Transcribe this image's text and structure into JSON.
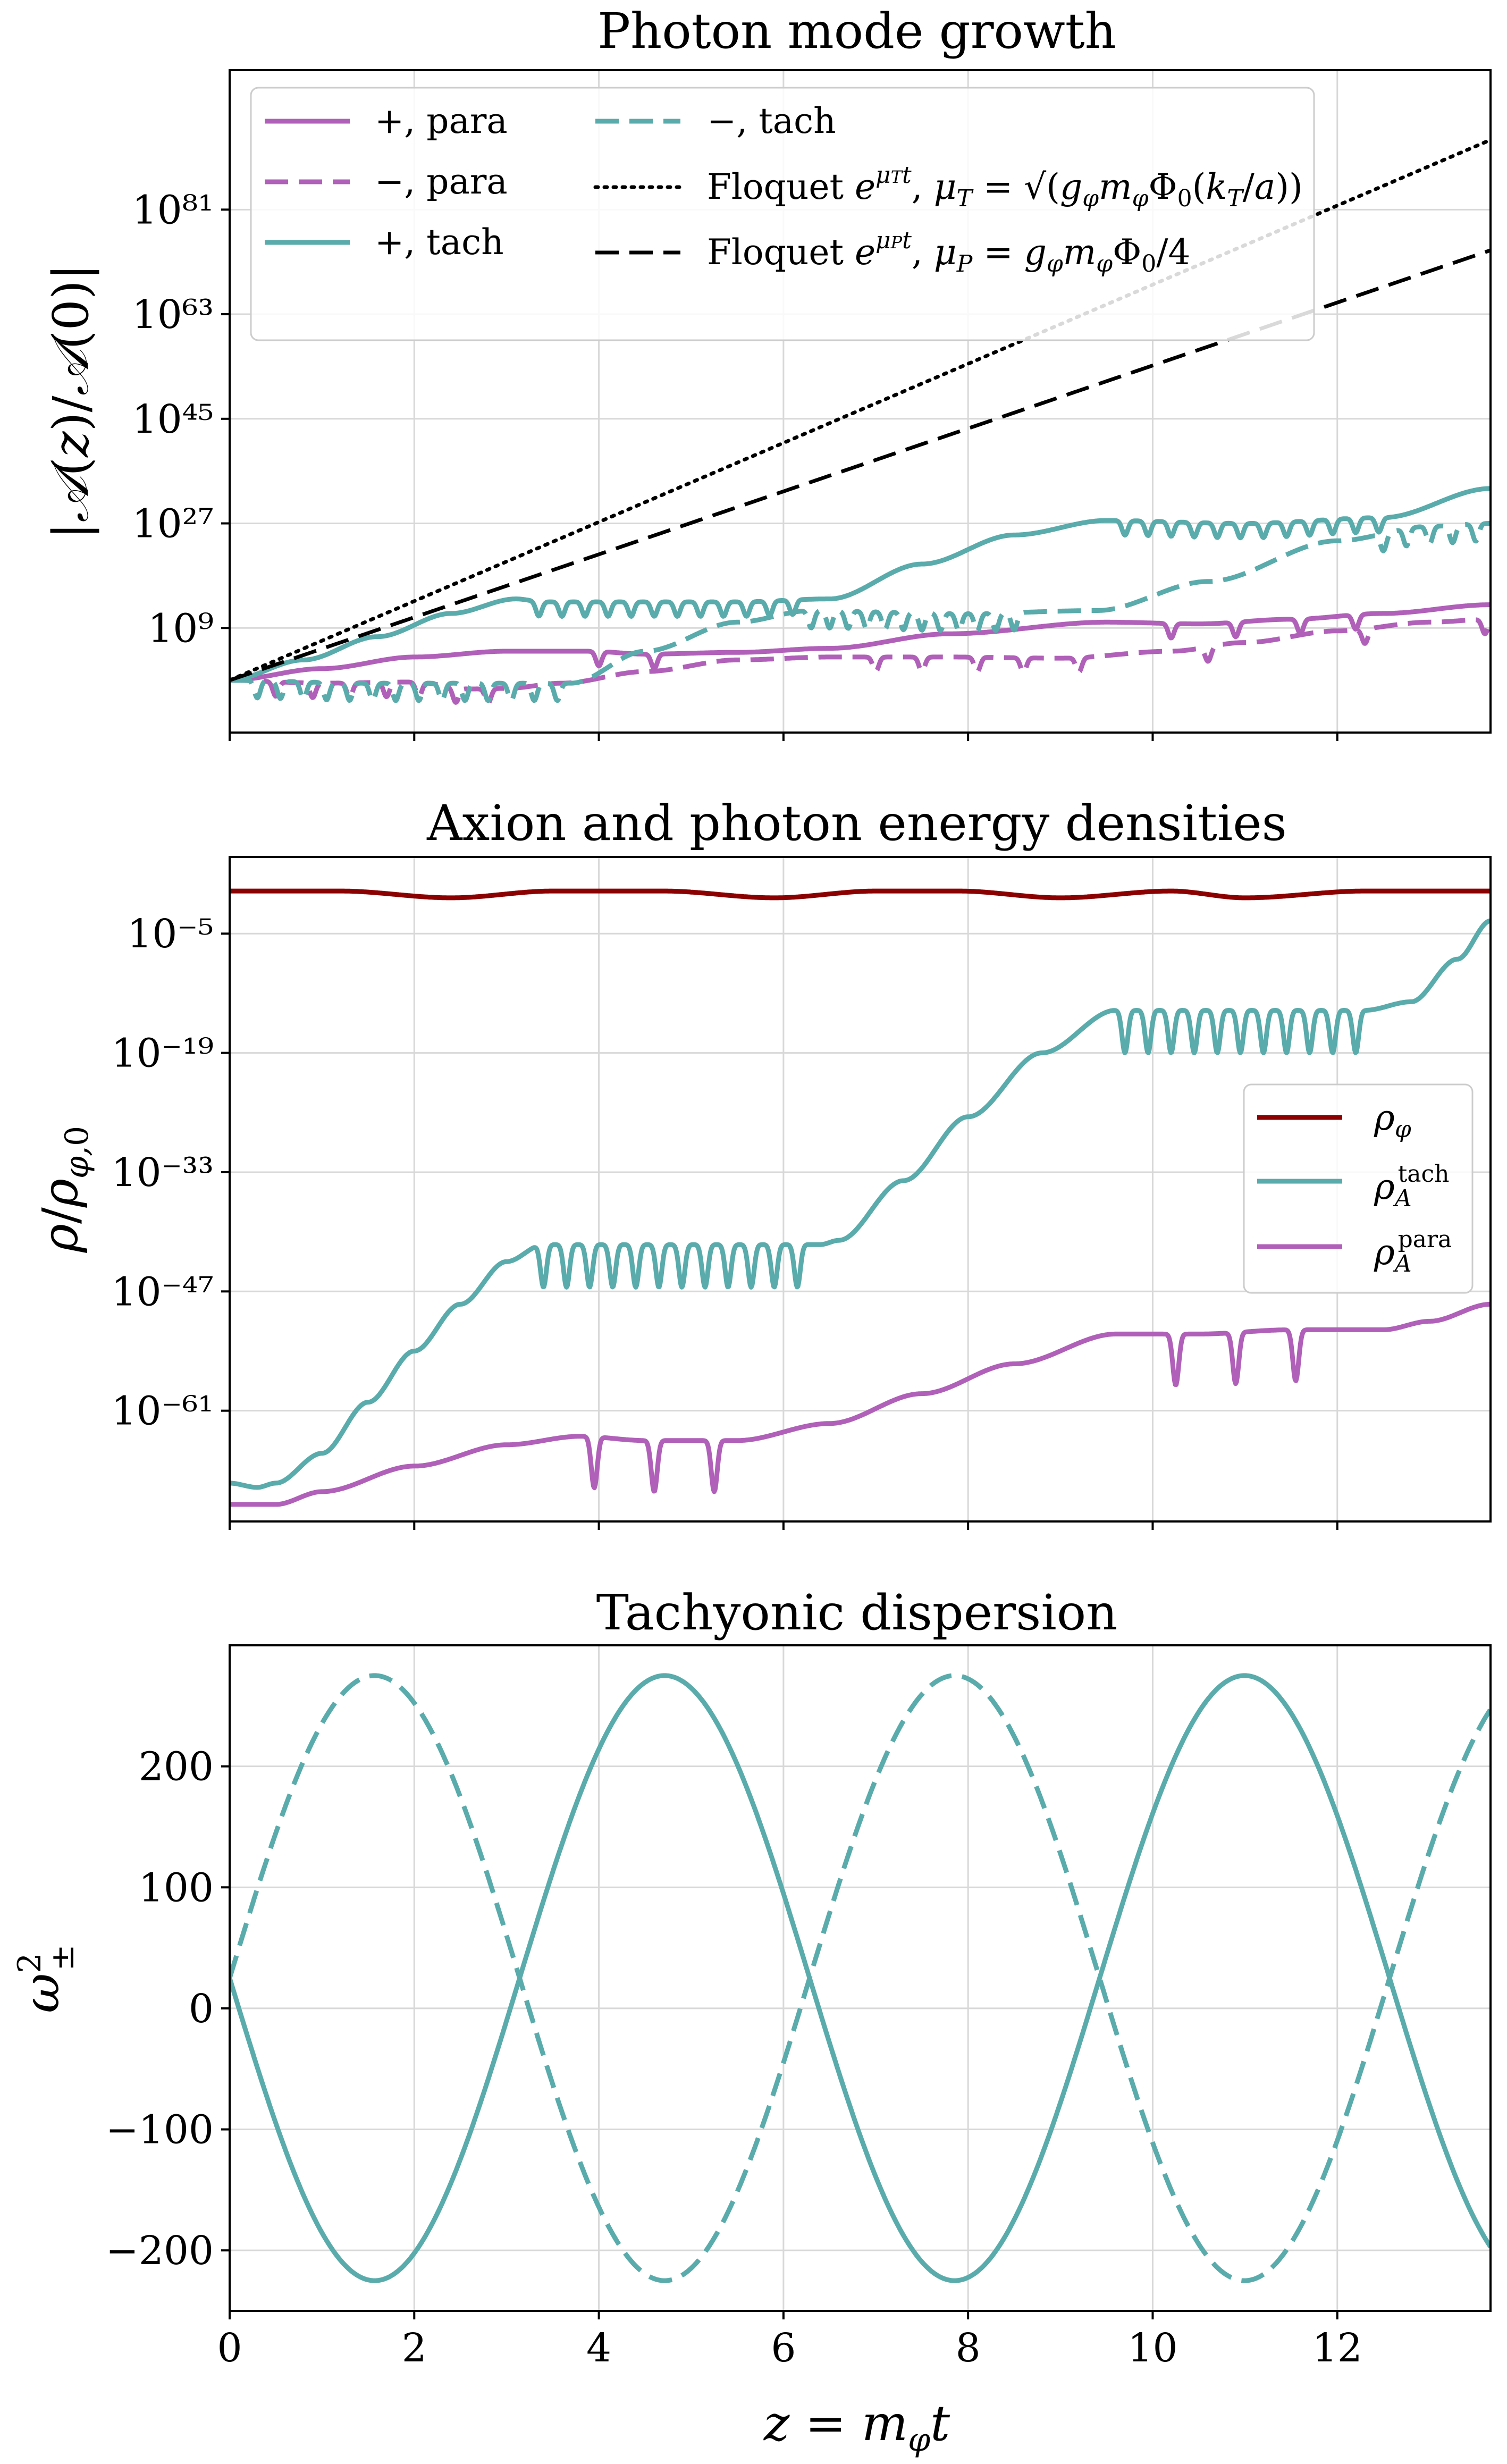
{
  "colors": {
    "para": "#b060b8",
    "tach": "#5aabab",
    "rho_phi": "#8b0000",
    "floquet": "#000000",
    "grid": "#d8d8d8"
  },
  "chart_data": [
    {
      "type": "line",
      "title": "Photon mode growth",
      "xlabel": "",
      "ylabel": "|𝒜(z)/𝒜(0)|",
      "yscale": "log",
      "xlim": [
        0,
        13.66
      ],
      "ylim_log10": [
        -9,
        105
      ],
      "x_ticks": [
        0,
        2,
        4,
        6,
        8,
        10,
        12
      ],
      "y_ticks_log10": [
        9,
        27,
        45,
        63,
        81
      ],
      "y_tick_labels": [
        "10⁹",
        "10²⁷",
        "10⁴⁵",
        "10⁶³",
        "10⁸¹"
      ],
      "grid": true,
      "legend_position": "top-left",
      "series": [
        {
          "name": "+, para",
          "color": "para",
          "style": "solid",
          "x": [
            0,
            1,
            2,
            3,
            3.9,
            4.5,
            5.5,
            6.5,
            7.8,
            9.5,
            10.5,
            11.5,
            12.5,
            13.66
          ],
          "log10_y": [
            0,
            2,
            4,
            5,
            5,
            4.5,
            4.8,
            5.5,
            8,
            10,
            9.7,
            10.5,
            11.5,
            13
          ]
        },
        {
          "name": "−, para",
          "color": "para",
          "style": "dashed",
          "x": [
            0,
            1,
            2,
            2.6,
            3,
            3.6,
            4.5,
            5.5,
            6.5,
            7.8,
            9,
            10.2,
            11,
            12,
            13,
            13.66
          ],
          "log10_y": [
            0,
            -0.5,
            -0.3,
            -1.5,
            -1.4,
            -0.5,
            1.5,
            3.5,
            4,
            4,
            3.8,
            5,
            6.5,
            8.5,
            10,
            10.5
          ]
        },
        {
          "name": "+, tach",
          "color": "tach",
          "style": "solid",
          "x": [
            0,
            0.8,
            1.6,
            2.4,
            3.1,
            3.4,
            5.5,
            6.5,
            7.5,
            8.5,
            9.5,
            11,
            12.5,
            13.66
          ],
          "log10_y": [
            0,
            3.5,
            7.5,
            11.5,
            14,
            13.5,
            13.5,
            14,
            20,
            25,
            27.5,
            27,
            28,
            33
          ]
        },
        {
          "name": "−, tach",
          "color": "tach",
          "style": "dashed",
          "x": [
            0,
            1.5,
            3,
            3.7,
            4.5,
            5.5,
            6.3,
            8,
            9.4,
            10.6,
            12,
            13,
            13.66
          ],
          "log10_y": [
            0,
            -0.5,
            -0.5,
            -0.5,
            5,
            10,
            12,
            11.5,
            12,
            17,
            24,
            26.5,
            27
          ]
        },
        {
          "name": "Floquet e^{μ_T t}, μ_T = √(g_φ m_φ Φ₀ (k_T/a))",
          "color": "floquet",
          "style": "dotted",
          "x": [
            0,
            13.66
          ],
          "log10_y": [
            0,
            93
          ]
        },
        {
          "name": "Floquet e^{μ_P t}, μ_P = g_φ m_φ Φ₀/4",
          "color": "floquet",
          "style": "dashed",
          "x": [
            0,
            13.66
          ],
          "log10_y": [
            0,
            74
          ]
        }
      ],
      "dips": [
        {
          "series": "+, para",
          "x": [
            4.0,
            4.6,
            10.2,
            10.9,
            11.6,
            12.2
          ],
          "depth": 2.5
        },
        {
          "series": "−, para",
          "x": [
            0.5,
            0.9,
            1.3,
            1.7,
            2.05,
            2.45,
            2.8,
            7.0,
            7.5,
            8.1,
            8.6,
            9.2,
            10.6,
            12.3,
            13.6
          ],
          "depth": 2.5
        },
        {
          "series": "+, tach",
          "x": [
            3.35,
            3.6,
            3.85,
            4.1,
            4.35,
            4.6,
            4.85,
            5.1,
            5.35,
            5.6,
            5.85,
            6.1,
            9.7,
            9.95,
            10.2,
            10.45,
            10.7,
            10.95,
            11.2,
            11.45,
            11.7,
            11.95,
            12.2,
            12.45
          ],
          "depth": 2.5
        },
        {
          "series": "−, tach",
          "x": [
            0.3,
            0.55,
            0.8,
            1.05,
            1.3,
            1.55,
            1.8,
            2.05,
            2.3,
            2.55,
            2.8,
            3.05,
            3.3,
            3.55,
            6.3,
            6.5,
            6.7,
            6.9,
            7.1,
            7.3,
            7.5,
            7.7,
            7.9,
            8.1,
            8.3,
            8.5,
            12.5,
            12.75,
            13.0,
            13.25,
            13.5
          ],
          "depth": 3
        }
      ]
    },
    {
      "type": "line",
      "title": "Axion and photon energy densities",
      "xlabel": "",
      "ylabel": "ρ/ρ_{φ,0}",
      "yscale": "log",
      "xlim": [
        0,
        13.66
      ],
      "ylim_log10": [
        -74,
        4
      ],
      "x_ticks": [
        0,
        2,
        4,
        6,
        8,
        10,
        12
      ],
      "y_ticks_log10": [
        -5,
        -19,
        -33,
        -47,
        -61
      ],
      "y_tick_labels": [
        "10⁻⁵",
        "10⁻¹⁹",
        "10⁻³³",
        "10⁻⁴⁷",
        "10⁻⁶¹"
      ],
      "grid": true,
      "legend_position": "center-right",
      "series": [
        {
          "name": "ρ_φ",
          "color": "rho_phi",
          "style": "solid",
          "x": [
            0,
            1.2,
            2.4,
            3.5,
            4.7,
            5.9,
            7.0,
            7.9,
            9.0,
            10.2,
            11.0,
            12.3,
            13.66
          ],
          "log10_y": [
            0,
            0,
            -0.8,
            0,
            0,
            -0.8,
            0,
            0,
            -0.8,
            0,
            -0.8,
            0,
            0
          ]
        },
        {
          "name": "ρ_A^tach",
          "color": "tach",
          "style": "solid",
          "x": [
            0,
            0.3,
            0.5,
            1,
            1.5,
            2,
            2.5,
            3,
            3.4,
            6.4,
            6.6,
            7.3,
            8,
            8.8,
            9.6,
            10.2,
            12.3,
            12.8,
            13.3,
            13.66
          ],
          "log10_y": [
            -69.5,
            -70,
            -69.5,
            -66,
            -60,
            -54,
            -48.5,
            -43.5,
            -41.5,
            -41.5,
            -41,
            -34,
            -26.5,
            -19,
            -14,
            -14,
            -14,
            -13,
            -8,
            -3.5
          ]
        },
        {
          "name": "ρ_A^para",
          "color": "para",
          "style": "solid",
          "x": [
            0,
            0.5,
            1,
            2,
            3,
            3.8,
            4.5,
            5.5,
            6.5,
            7.5,
            8.5,
            9.6,
            10.5,
            11.5,
            12.5,
            13,
            13.66
          ],
          "log10_y": [
            -72,
            -72,
            -70.5,
            -67.5,
            -65,
            -64,
            -64.5,
            -64.5,
            -62.5,
            -59,
            -55.5,
            -52,
            -52,
            -51.5,
            -51.5,
            -50.5,
            -48.5
          ]
        }
      ],
      "dips": [
        {
          "series": "ρ_A^tach",
          "x": [
            3.4,
            3.65,
            3.9,
            4.15,
            4.4,
            4.65,
            4.9,
            5.15,
            5.4,
            5.65,
            5.9,
            6.15
          ],
          "depth": 5
        },
        {
          "series": "ρ_A^tach",
          "x": [
            9.7,
            9.95,
            10.2,
            10.45,
            10.7,
            10.95,
            11.2,
            11.45,
            11.7,
            11.95,
            12.2
          ],
          "depth": 5
        },
        {
          "series": "ρ_A^para",
          "x": [
            3.95,
            4.6,
            5.25,
            10.25,
            10.9,
            11.55
          ],
          "depth": 6
        }
      ]
    },
    {
      "type": "line",
      "title": "Tachyonic dispersion",
      "xlabel": "z = m_φ t",
      "ylabel": "ω²_±",
      "xlim": [
        0,
        13.66
      ],
      "ylim": [
        -250,
        300
      ],
      "x_ticks": [
        0,
        2,
        4,
        6,
        8,
        10,
        12
      ],
      "y_ticks": [
        200,
        100,
        0,
        -100,
        -200
      ],
      "y_tick_labels": [
        "200",
        "100",
        "0",
        "−100",
        "−200"
      ],
      "grid": true,
      "series": [
        {
          "name": "ω²_+",
          "color": "tach",
          "style": "solid",
          "model": "25 - 250*sin(x)"
        },
        {
          "name": "ω²_−",
          "color": "tach",
          "style": "dashed",
          "model": "25 + 250*sin(x)"
        }
      ]
    }
  ],
  "legend1": {
    "entries": [
      {
        "label": "+, para",
        "color": "para",
        "style": "solid"
      },
      {
        "label": "−, para",
        "color": "para",
        "style": "dashed"
      },
      {
        "label": "+, tach",
        "color": "tach",
        "style": "solid"
      },
      {
        "label": "−, tach",
        "color": "tach",
        "style": "dashed"
      },
      {
        "label": "Floquet e^{μ_T t}, μ_T = √(g_φ m_φ Φ₀(k_T/a))",
        "color": "floquet",
        "style": "dotted"
      },
      {
        "label": "Floquet e^{μ_P t}, μ_P = g_φ m_φ Φ₀/4",
        "color": "floquet",
        "style": "dashed"
      }
    ]
  },
  "legend2": {
    "entries": [
      {
        "label": "ρ_φ",
        "color": "rho_phi"
      },
      {
        "label": "ρ_A^tach",
        "color": "tach"
      },
      {
        "label": "ρ_A^para",
        "color": "para"
      }
    ]
  }
}
